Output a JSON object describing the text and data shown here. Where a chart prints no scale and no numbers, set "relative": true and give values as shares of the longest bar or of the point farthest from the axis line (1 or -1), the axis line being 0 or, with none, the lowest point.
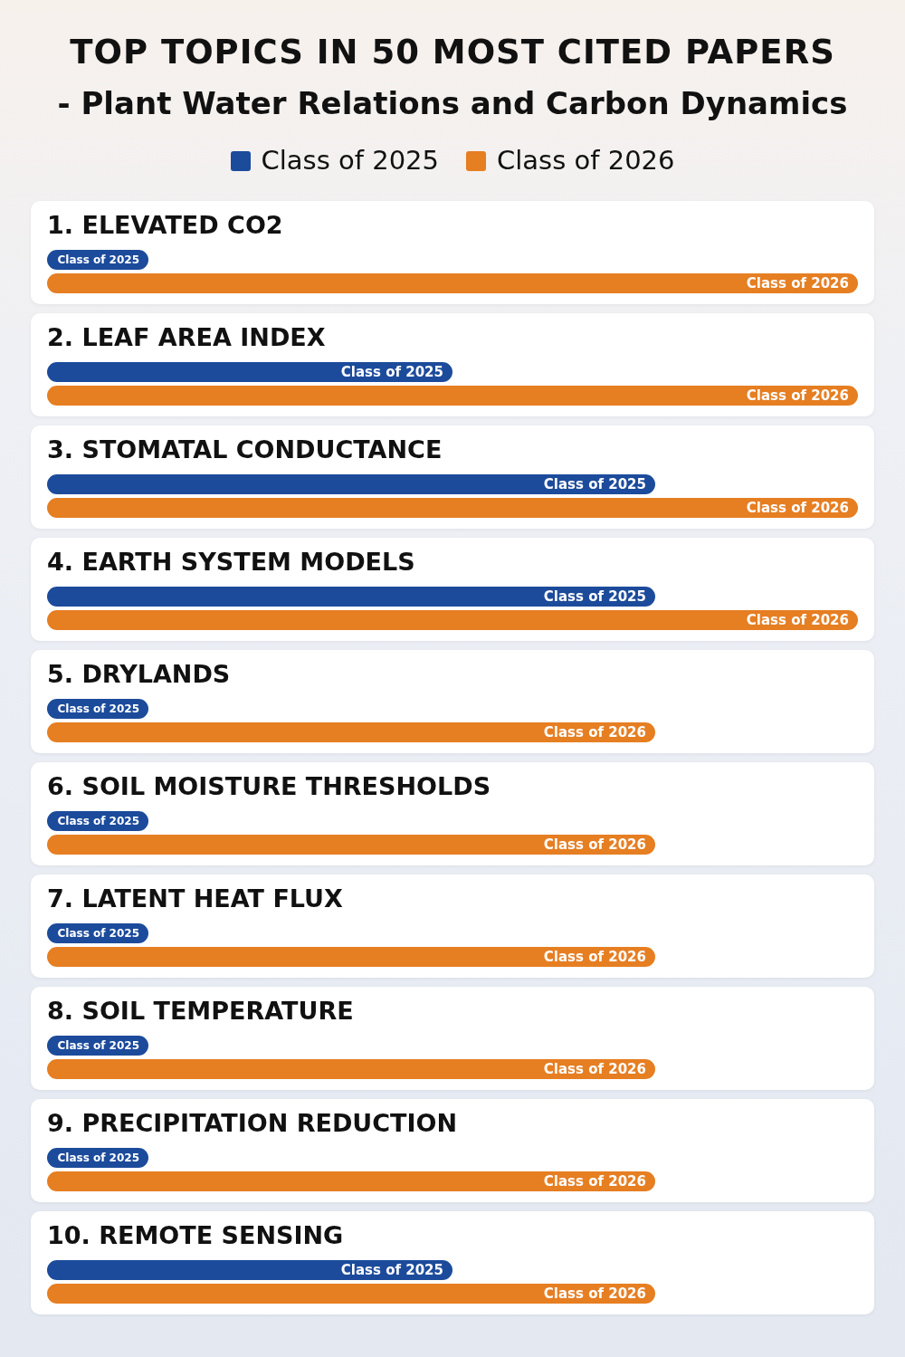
{
  "chart_data": {
    "type": "bar",
    "orientation": "horizontal",
    "relative": true,
    "legend": "top",
    "title": "TOP TOPICS IN 50 MOST CITED PAPERS",
    "subtitle": "- Plant Water Relations and Carbon Dynamics",
    "categories": [
      "1. ELEVATED CO2",
      "2. LEAF AREA INDEX",
      "3. STOMATAL CONDUCTANCE",
      "4. EARTH SYSTEM MODELS",
      "5. DRYLANDS",
      "6. SOIL MOISTURE THRESHOLDS",
      "7. LATENT HEAT FLUX",
      "8. SOIL TEMPERATURE",
      "9. PRECIPITATION REDUCTION",
      "10. REMOTE SENSING"
    ],
    "series": [
      {
        "name": "Class of 2025",
        "color": "#1c4b9b",
        "values": [
          0.125,
          0.5,
          0.75,
          0.75,
          0.125,
          0.125,
          0.125,
          0.125,
          0.125,
          0.5
        ]
      },
      {
        "name": "Class of 2026",
        "color": "#e67e22",
        "values": [
          1,
          1,
          1,
          1,
          0.75,
          0.75,
          0.75,
          0.75,
          0.75,
          0.75
        ]
      }
    ]
  }
}
